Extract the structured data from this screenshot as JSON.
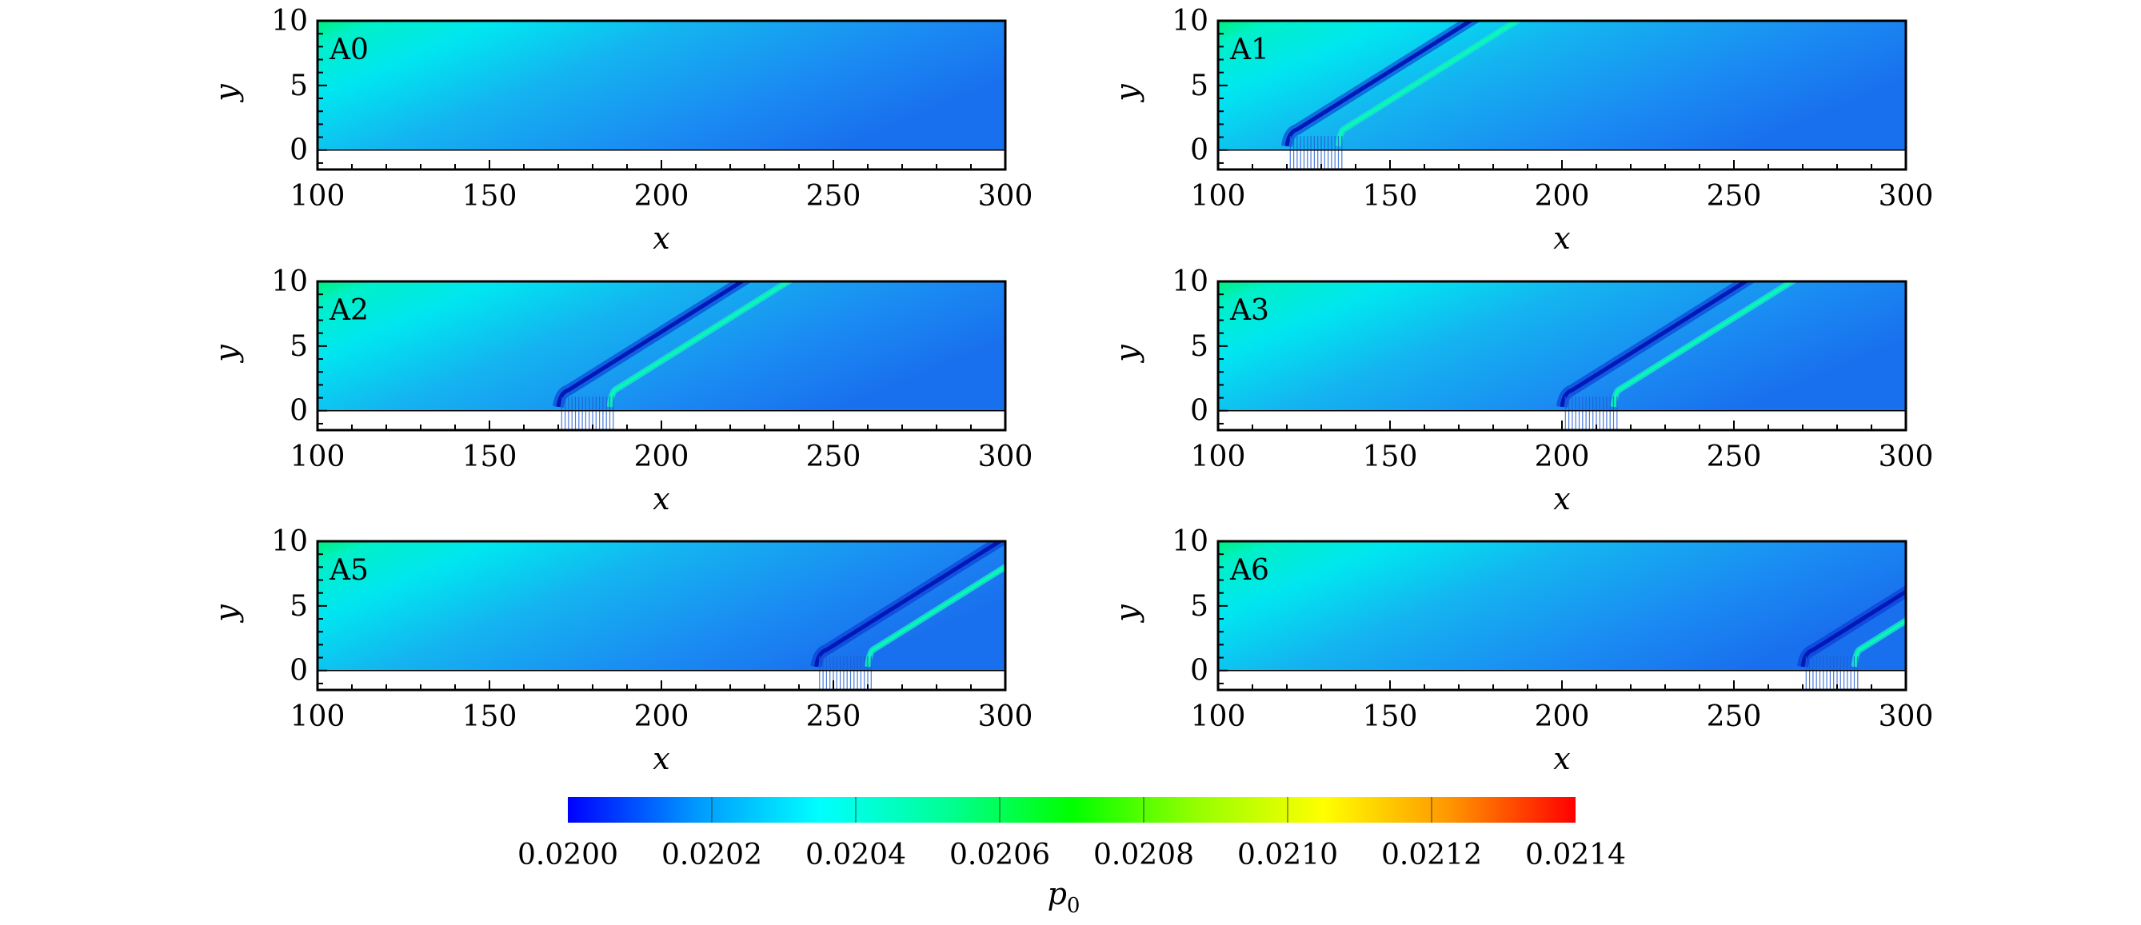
{
  "chart_data": [
    {
      "type": "heatmap",
      "panel_label": "A0",
      "xlabel": "x",
      "ylabel": "y",
      "xlim": [
        100,
        300
      ],
      "ylim": [
        -1.5,
        10
      ],
      "x_ticks": [
        "100",
        "150",
        "200",
        "250",
        "300"
      ],
      "y_ticks": [
        "0",
        "5",
        "10"
      ],
      "shock_x": null
    },
    {
      "type": "heatmap",
      "panel_label": "A1",
      "xlabel": "x",
      "ylabel": "y",
      "xlim": [
        100,
        300
      ],
      "ylim": [
        -1.5,
        10
      ],
      "x_ticks": [
        "100",
        "150",
        "200",
        "250",
        "300"
      ],
      "y_ticks": [
        "0",
        "5",
        "10"
      ],
      "shock_x": 120
    },
    {
      "type": "heatmap",
      "panel_label": "A2",
      "xlabel": "x",
      "ylabel": "y",
      "xlim": [
        100,
        300
      ],
      "ylim": [
        -1.5,
        10
      ],
      "x_ticks": [
        "100",
        "150",
        "200",
        "250",
        "300"
      ],
      "y_ticks": [
        "0",
        "5",
        "10"
      ],
      "shock_x": 170
    },
    {
      "type": "heatmap",
      "panel_label": "A3",
      "xlabel": "x",
      "ylabel": "y",
      "xlim": [
        100,
        300
      ],
      "ylim": [
        -1.5,
        10
      ],
      "x_ticks": [
        "100",
        "150",
        "200",
        "250",
        "300"
      ],
      "y_ticks": [
        "0",
        "5",
        "10"
      ],
      "shock_x": 200
    },
    {
      "type": "heatmap",
      "panel_label": "A5",
      "xlabel": "x",
      "ylabel": "y",
      "xlim": [
        100,
        300
      ],
      "ylim": [
        -1.5,
        10
      ],
      "x_ticks": [
        "100",
        "150",
        "200",
        "250",
        "300"
      ],
      "y_ticks": [
        "0",
        "5",
        "10"
      ],
      "shock_x": 245
    },
    {
      "type": "heatmap",
      "panel_label": "A6",
      "xlabel": "x",
      "ylabel": "y",
      "xlim": [
        100,
        300
      ],
      "ylim": [
        -1.5,
        10
      ],
      "x_ticks": [
        "100",
        "150",
        "200",
        "250",
        "300"
      ],
      "y_ticks": [
        "0",
        "5",
        "10"
      ],
      "shock_x": 270
    }
  ],
  "colorbar": {
    "label": "p",
    "label_sub": "0",
    "range": [
      0.02,
      0.0214
    ],
    "ticks": [
      "0.0200",
      "0.0202",
      "0.0204",
      "0.0206",
      "0.0208",
      "0.0210",
      "0.0212",
      "0.0214"
    ],
    "colors": [
      "#0000ff",
      "#0096ff",
      "#00ffff",
      "#00ff96",
      "#00ff00",
      "#96ff00",
      "#ffff00",
      "#ff9600",
      "#ff0000"
    ]
  }
}
